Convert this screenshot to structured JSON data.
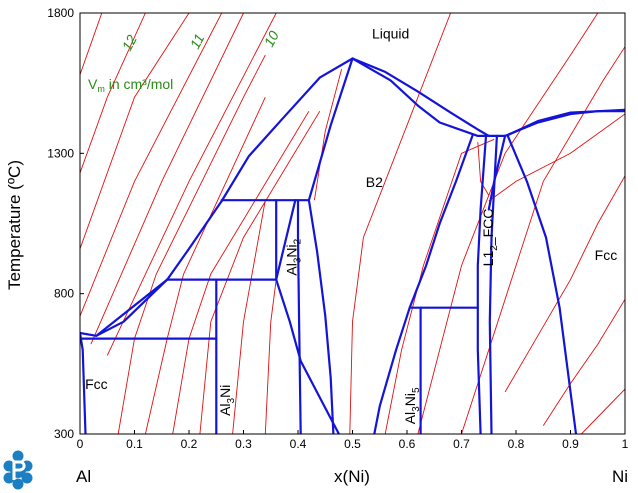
{
  "chart_data": {
    "type": "line",
    "title": "",
    "xlabel": "x(Ni)",
    "ylabel": "Temperature (ºC)",
    "xlim": [
      0,
      1
    ],
    "ylim": [
      300,
      1800
    ],
    "x_ticks": [
      "0",
      "0.1",
      "0.2",
      "0.3",
      "0.4",
      "0.5",
      "0.6",
      "0.7",
      "0.8",
      "0.9",
      "1"
    ],
    "y_ticks": [
      "300",
      "800",
      "1300",
      "1800"
    ],
    "x_end_labels": {
      "left": "Al",
      "right": "Ni"
    },
    "grid": false,
    "legend": "none",
    "colors": {
      "phase_boundary": "#1414d8",
      "iso_volume": "#e01010",
      "iso_label": "#2a8a1a",
      "logo": "#1b7fc2"
    },
    "annotations": {
      "vm_note": {
        "prefix": "V",
        "sub": "m",
        "suffix": " in cm³/mol"
      },
      "iso_values": [
        "12",
        "11",
        "10"
      ]
    },
    "phase_labels": [
      {
        "name": "Liquid",
        "x": 0.57,
        "y": 1710
      },
      {
        "name": "B2",
        "x": 0.54,
        "y": 1180
      },
      {
        "name": "Fcc",
        "x": 0.03,
        "y": 460
      },
      {
        "name": "Fcc",
        "x": 0.965,
        "y": 920
      }
    ],
    "compound_labels": [
      {
        "main": "Al",
        "sub1": "3",
        "mid": "Ni",
        "sub2": "",
        "x": 0.275,
        "y": 420
      },
      {
        "main": "Al",
        "sub1": "3",
        "mid": "Ni",
        "sub2": "2",
        "x": 0.397,
        "y": 930
      },
      {
        "main": "Al",
        "sub1": "3",
        "mid": "Ni",
        "sub2": "5",
        "x": 0.615,
        "y": 400
      },
      {
        "main": "L1",
        "sub1": "2",
        "mid": "_FCC",
        "sub2": "",
        "x": 0.758,
        "y": 1000
      }
    ],
    "series": [
      {
        "type": "phase_boundary",
        "points": [
          [
            0.0,
            660
          ],
          [
            0.03,
            650
          ],
          [
            0.08,
            700
          ],
          [
            0.16,
            850
          ]
        ]
      },
      {
        "type": "phase_boundary",
        "points": [
          [
            0.03,
            650
          ],
          [
            0.16,
            850
          ]
        ]
      },
      {
        "type": "phase_boundary",
        "points": [
          [
            0.16,
            850
          ],
          [
            0.2,
            960
          ],
          [
            0.26,
            1130
          ]
        ]
      },
      {
        "type": "phase_boundary",
        "points": [
          [
            0.26,
            1130
          ],
          [
            0.31,
            1290
          ],
          [
            0.37,
            1420
          ],
          [
            0.44,
            1570
          ],
          [
            0.5,
            1638
          ]
        ]
      },
      {
        "type": "phase_boundary",
        "points": [
          [
            0.5,
            1638
          ],
          [
            0.57,
            1560
          ],
          [
            0.62,
            1470
          ],
          [
            0.66,
            1410
          ],
          [
            0.73,
            1362
          ],
          [
            0.75,
            1362
          ]
        ]
      },
      {
        "type": "phase_boundary",
        "points": [
          [
            0.5,
            1638
          ],
          [
            0.56,
            1590
          ],
          [
            0.62,
            1520
          ],
          [
            0.68,
            1445
          ],
          [
            0.73,
            1385
          ],
          [
            0.75,
            1362
          ]
        ]
      },
      {
        "type": "phase_boundary",
        "points": [
          [
            0.42,
            1133
          ],
          [
            0.46,
            1400
          ],
          [
            0.5,
            1638
          ]
        ]
      },
      {
        "type": "phase_boundary",
        "points": [
          [
            0.26,
            1133
          ],
          [
            0.42,
            1133
          ]
        ]
      },
      {
        "type": "phase_boundary",
        "points": [
          [
            0.36,
            1133
          ],
          [
            0.36,
            850
          ]
        ]
      },
      {
        "type": "phase_boundary",
        "points": [
          [
            0.16,
            850
          ],
          [
            0.36,
            850
          ]
        ]
      },
      {
        "type": "phase_boundary",
        "points": [
          [
            0.25,
            850
          ],
          [
            0.25,
            300
          ]
        ]
      },
      {
        "type": "phase_boundary",
        "points": [
          [
            0.0,
            640
          ],
          [
            0.25,
            640
          ]
        ]
      },
      {
        "type": "phase_boundary",
        "points": [
          [
            0.0,
            660
          ],
          [
            0.005,
            600
          ],
          [
            0.01,
            300
          ]
        ]
      },
      {
        "type": "phase_boundary",
        "points": [
          [
            0.4,
            1133
          ],
          [
            0.4,
            1000
          ],
          [
            0.402,
            700
          ],
          [
            0.405,
            300
          ]
        ]
      },
      {
        "type": "phase_boundary",
        "points": [
          [
            0.395,
            1133
          ],
          [
            0.36,
            850
          ]
        ]
      },
      {
        "type": "phase_boundary",
        "points": [
          [
            0.42,
            1133
          ],
          [
            0.435,
            950
          ],
          [
            0.45,
            720
          ],
          [
            0.46,
            500
          ],
          [
            0.465,
            300
          ]
        ]
      },
      {
        "type": "phase_boundary",
        "points": [
          [
            0.36,
            850
          ],
          [
            0.385,
            700
          ],
          [
            0.405,
            560
          ],
          [
            0.475,
            300
          ]
        ]
      },
      {
        "type": "phase_boundary",
        "points": [
          [
            0.72,
            1362
          ],
          [
            0.69,
            1200
          ],
          [
            0.66,
            1050
          ],
          [
            0.635,
            900
          ],
          [
            0.605,
            750
          ],
          [
            0.58,
            600
          ],
          [
            0.55,
            400
          ],
          [
            0.54,
            300
          ]
        ]
      },
      {
        "type": "phase_boundary",
        "points": [
          [
            0.605,
            750
          ],
          [
            0.73,
            750
          ]
        ]
      },
      {
        "type": "phase_boundary",
        "points": [
          [
            0.625,
            750
          ],
          [
            0.625,
            300
          ]
        ]
      },
      {
        "type": "phase_boundary",
        "points": [
          [
            0.745,
            1362
          ],
          [
            0.735,
            1100
          ],
          [
            0.73,
            900
          ],
          [
            0.73,
            600
          ],
          [
            0.735,
            300
          ]
        ]
      },
      {
        "type": "phase_boundary",
        "points": [
          [
            0.765,
            1362
          ],
          [
            0.755,
            1000
          ],
          [
            0.752,
            700
          ],
          [
            0.755,
            300
          ]
        ]
      },
      {
        "type": "phase_boundary",
        "points": [
          [
            0.78,
            1362
          ],
          [
            0.76,
            1200
          ],
          [
            0.75,
            1100
          ]
        ]
      },
      {
        "type": "phase_boundary",
        "points": [
          [
            0.785,
            1362
          ],
          [
            0.82,
            1200
          ],
          [
            0.855,
            1000
          ],
          [
            0.88,
            750
          ],
          [
            0.9,
            450
          ],
          [
            0.91,
            300
          ]
        ]
      },
      {
        "type": "phase_boundary",
        "points": [
          [
            0.75,
            1362
          ],
          [
            0.78,
            1362
          ]
        ]
      },
      {
        "type": "phase_boundary",
        "points": [
          [
            0.78,
            1362
          ],
          [
            0.84,
            1410
          ],
          [
            0.9,
            1440
          ],
          [
            0.95,
            1450
          ],
          [
            1.0,
            1450
          ]
        ]
      },
      {
        "type": "phase_boundary",
        "points": [
          [
            0.785,
            1365
          ],
          [
            0.84,
            1415
          ],
          [
            0.9,
            1445
          ],
          [
            1.0,
            1455
          ]
        ]
      },
      {
        "type": "iso_volume",
        "points": [
          [
            0.0,
            1580
          ],
          [
            0.04,
            1800
          ]
        ]
      },
      {
        "type": "iso_volume",
        "points": [
          [
            0.0,
            1230
          ],
          [
            0.05,
            1500
          ],
          [
            0.12,
            1800
          ]
        ]
      },
      {
        "type": "iso_volume",
        "points": [
          [
            0.0,
            960
          ],
          [
            0.1,
            1500
          ],
          [
            0.2,
            1800
          ]
        ]
      },
      {
        "type": "iso_volume",
        "points": [
          [
            0.0,
            720
          ],
          [
            0.1,
            1200
          ],
          [
            0.26,
            1800
          ]
        ]
      },
      {
        "type": "iso_volume",
        "points": [
          [
            0.02,
            620
          ],
          [
            0.15,
            1200
          ],
          [
            0.3,
            1800
          ]
        ]
      },
      {
        "type": "iso_volume",
        "points": [
          [
            0.05,
            580
          ],
          [
            0.2,
            1200
          ],
          [
            0.36,
            1800
          ]
        ]
      },
      {
        "type": "iso_volume",
        "points": [
          [
            0.07,
            300
          ],
          [
            0.1,
            640
          ],
          [
            0.14,
            870
          ],
          [
            0.3,
            1500
          ],
          [
            0.34,
            1650
          ]
        ]
      },
      {
        "type": "iso_volume",
        "points": [
          [
            0.12,
            300
          ],
          [
            0.16,
            640
          ],
          [
            0.19,
            870
          ],
          [
            0.34,
            1500
          ]
        ]
      },
      {
        "type": "iso_volume",
        "points": [
          [
            0.17,
            300
          ],
          [
            0.2,
            640
          ],
          [
            0.24,
            870
          ],
          [
            0.42,
            1450
          ]
        ]
      },
      {
        "type": "iso_volume",
        "points": [
          [
            0.22,
            300
          ],
          [
            0.24,
            700
          ],
          [
            0.3,
            1000
          ],
          [
            0.44,
            1450
          ]
        ]
      },
      {
        "type": "iso_volume",
        "points": [
          [
            0.28,
            300
          ],
          [
            0.3,
            700
          ],
          [
            0.34,
            1133
          ]
        ]
      },
      {
        "type": "iso_volume",
        "points": [
          [
            0.34,
            300
          ],
          [
            0.35,
            700
          ],
          [
            0.36,
            850
          ]
        ]
      },
      {
        "type": "iso_volume",
        "points": [
          [
            0.43,
            1133
          ],
          [
            0.45,
            1380
          ],
          [
            0.48,
            1600
          ]
        ]
      },
      {
        "type": "iso_volume",
        "points": [
          [
            0.495,
            300
          ],
          [
            0.5,
            700
          ],
          [
            0.52,
            1000
          ],
          [
            0.6,
            1400
          ],
          [
            0.68,
            1800
          ]
        ]
      },
      {
        "type": "iso_volume",
        "points": [
          [
            0.56,
            300
          ],
          [
            0.59,
            600
          ],
          [
            0.63,
            900
          ],
          [
            0.7,
            1300
          ],
          [
            0.76,
            1350
          ]
        ]
      },
      {
        "type": "iso_volume",
        "points": [
          [
            0.62,
            300
          ],
          [
            0.66,
            600
          ],
          [
            0.7,
            900
          ],
          [
            0.78,
            1300
          ],
          [
            0.9,
            1650
          ],
          [
            0.95,
            1800
          ]
        ]
      },
      {
        "type": "iso_volume",
        "points": [
          [
            0.7,
            300
          ],
          [
            0.75,
            600
          ],
          [
            0.8,
            900
          ],
          [
            0.85,
            1200
          ],
          [
            0.96,
            1560
          ],
          [
            1.0,
            1680
          ]
        ]
      },
      {
        "type": "iso_volume",
        "points": [
          [
            0.75,
            1130
          ],
          [
            0.8,
            1200
          ],
          [
            0.9,
            1300
          ],
          [
            1.0,
            1440
          ]
        ]
      },
      {
        "type": "iso_volume",
        "points": [
          [
            0.78,
            450
          ],
          [
            0.84,
            650
          ],
          [
            0.9,
            850
          ],
          [
            0.95,
            1050
          ],
          [
            1.0,
            1220
          ]
        ]
      },
      {
        "type": "iso_volume",
        "points": [
          [
            0.85,
            330
          ],
          [
            0.9,
            480
          ],
          [
            0.95,
            620
          ],
          [
            1.0,
            780
          ]
        ]
      },
      {
        "type": "iso_volume",
        "points": [
          [
            0.92,
            300
          ],
          [
            0.96,
            380
          ],
          [
            1.0,
            460
          ]
        ]
      },
      {
        "type": "iso_volume",
        "points": [
          [
            0.73,
            1340
          ],
          [
            0.735,
            1200
          ],
          [
            0.75,
            1150
          ]
        ]
      }
    ]
  }
}
